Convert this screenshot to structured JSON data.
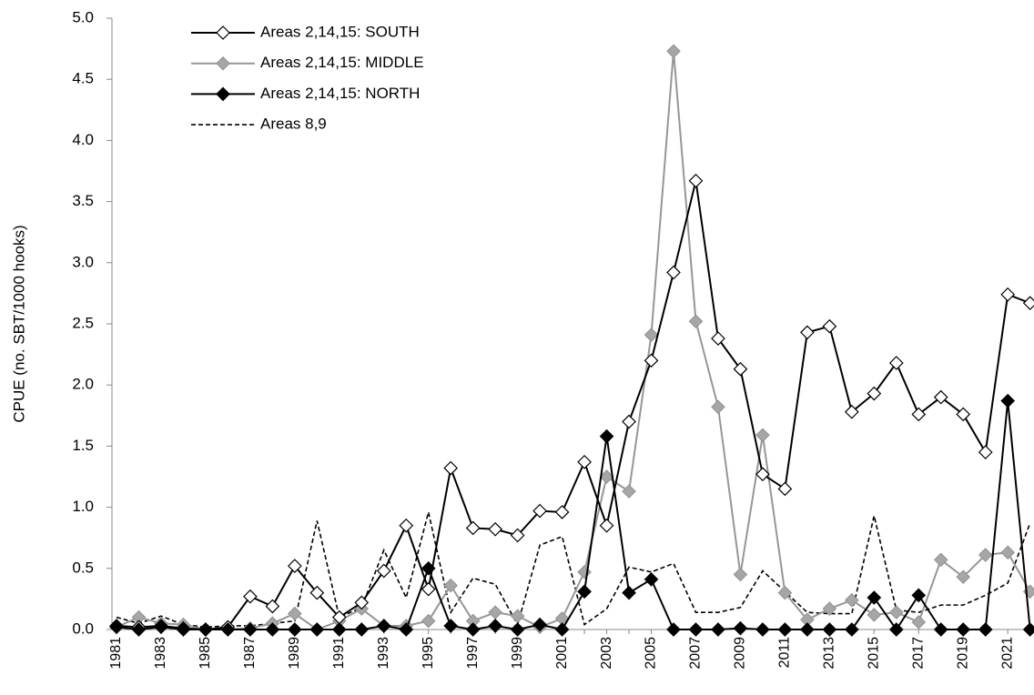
{
  "chart_data": {
    "type": "line",
    "ylabel": "CPUE (no. SBT/1000 hooks)",
    "categories": [
      "1981",
      null,
      "1983",
      null,
      "1985",
      null,
      "1987",
      null,
      "1989",
      null,
      "1991",
      null,
      "1993",
      null,
      "1995",
      null,
      "1997",
      null,
      "1999",
      null,
      "2001",
      null,
      "2003",
      null,
      "2005",
      null,
      "2007",
      null,
      "2009",
      null,
      "2011",
      null,
      "2013",
      null,
      "2015",
      null,
      "2017",
      null,
      "2019",
      null,
      "2021",
      null
    ],
    "ylim": [
      0,
      5
    ],
    "yticks": [
      {
        "value": 0,
        "label": "0.0"
      },
      {
        "value": 0.5,
        "label": "0.5"
      },
      {
        "value": 1,
        "label": "1.0"
      },
      {
        "value": 1.5,
        "label": "1.5"
      },
      {
        "value": 2,
        "label": "2.0"
      },
      {
        "value": 2.5,
        "label": "2.5"
      },
      {
        "value": 3,
        "label": "3.0"
      },
      {
        "value": 3.5,
        "label": "3.5"
      },
      {
        "value": 4,
        "label": "4.0"
      },
      {
        "value": 4.5,
        "label": "4.5"
      },
      {
        "value": 5,
        "label": "5.0"
      }
    ],
    "grid": false,
    "legend": "top-left",
    "series": [
      {
        "name": "Areas 2,14,15: SOUTH",
        "color": "#000000",
        "marker": "diamond",
        "marker_fill": "#ffffff",
        "dash": false,
        "values": [
          0.03,
          0.02,
          0.03,
          0.01,
          0,
          0.02,
          0.27,
          0.19,
          0.52,
          0.3,
          0.1,
          0.22,
          0.48,
          0.85,
          0.33,
          1.32,
          0.83,
          0.82,
          0.77,
          0.97,
          0.96,
          1.37,
          0.85,
          1.7,
          2.2,
          2.92,
          3.67,
          2.38,
          2.13,
          1.27,
          1.15,
          2.43,
          2.48,
          1.78,
          1.93,
          2.18,
          1.76,
          1.9,
          1.76,
          1.45,
          2.74,
          2.67
        ]
      },
      {
        "name": "Areas 2,14,15: MIDDLE",
        "color": "#969696",
        "marker": "diamond",
        "marker_fill": "#a6a6a6",
        "dash": false,
        "values": [
          0.02,
          0.1,
          0.05,
          0.04,
          0,
          0,
          0.01,
          0.05,
          0.13,
          0,
          0.07,
          0.17,
          0.03,
          0.03,
          0.07,
          0.36,
          0.07,
          0.14,
          0.11,
          0.02,
          0.09,
          0.47,
          1.25,
          1.13,
          2.41,
          4.73,
          2.52,
          1.82,
          0.45,
          1.59,
          0.3,
          0.08,
          0.17,
          0.24,
          0.12,
          0.14,
          0.06,
          0.57,
          0.43,
          0.61,
          0.63,
          0.31
        ]
      },
      {
        "name": "Areas 2,14,15: NORTH",
        "color": "#000000",
        "marker": "diamond",
        "marker_fill": "#000000",
        "dash": false,
        "values": [
          0.02,
          0,
          0.02,
          0,
          0,
          0,
          0,
          0,
          0,
          0,
          0,
          0,
          0.03,
          0,
          0.5,
          0.03,
          0,
          0.03,
          0,
          0.04,
          0,
          0.31,
          1.58,
          0.3,
          0.41,
          0,
          0,
          0,
          0.01,
          0,
          0,
          0,
          0,
          0,
          0.26,
          0,
          0.28,
          0,
          0,
          0,
          1.87,
          0
        ]
      },
      {
        "name": "Areas 8,9",
        "color": "#000000",
        "marker": "none",
        "marker_fill": "#000000",
        "dash": true,
        "values": [
          0.1,
          0.05,
          0.11,
          0.04,
          0.02,
          0.03,
          0.03,
          0.05,
          0.07,
          0.89,
          0.1,
          0.18,
          0.65,
          0.26,
          0.96,
          0.14,
          0.42,
          0.37,
          0.04,
          0.69,
          0.76,
          0.04,
          0.17,
          0.51,
          0.47,
          0.54,
          0.14,
          0.14,
          0.18,
          0.48,
          0.31,
          0.14,
          0.13,
          0.13,
          0.93,
          0.16,
          0.14,
          0.2,
          0.2,
          0.28,
          0.38,
          0.87
        ]
      }
    ]
  }
}
